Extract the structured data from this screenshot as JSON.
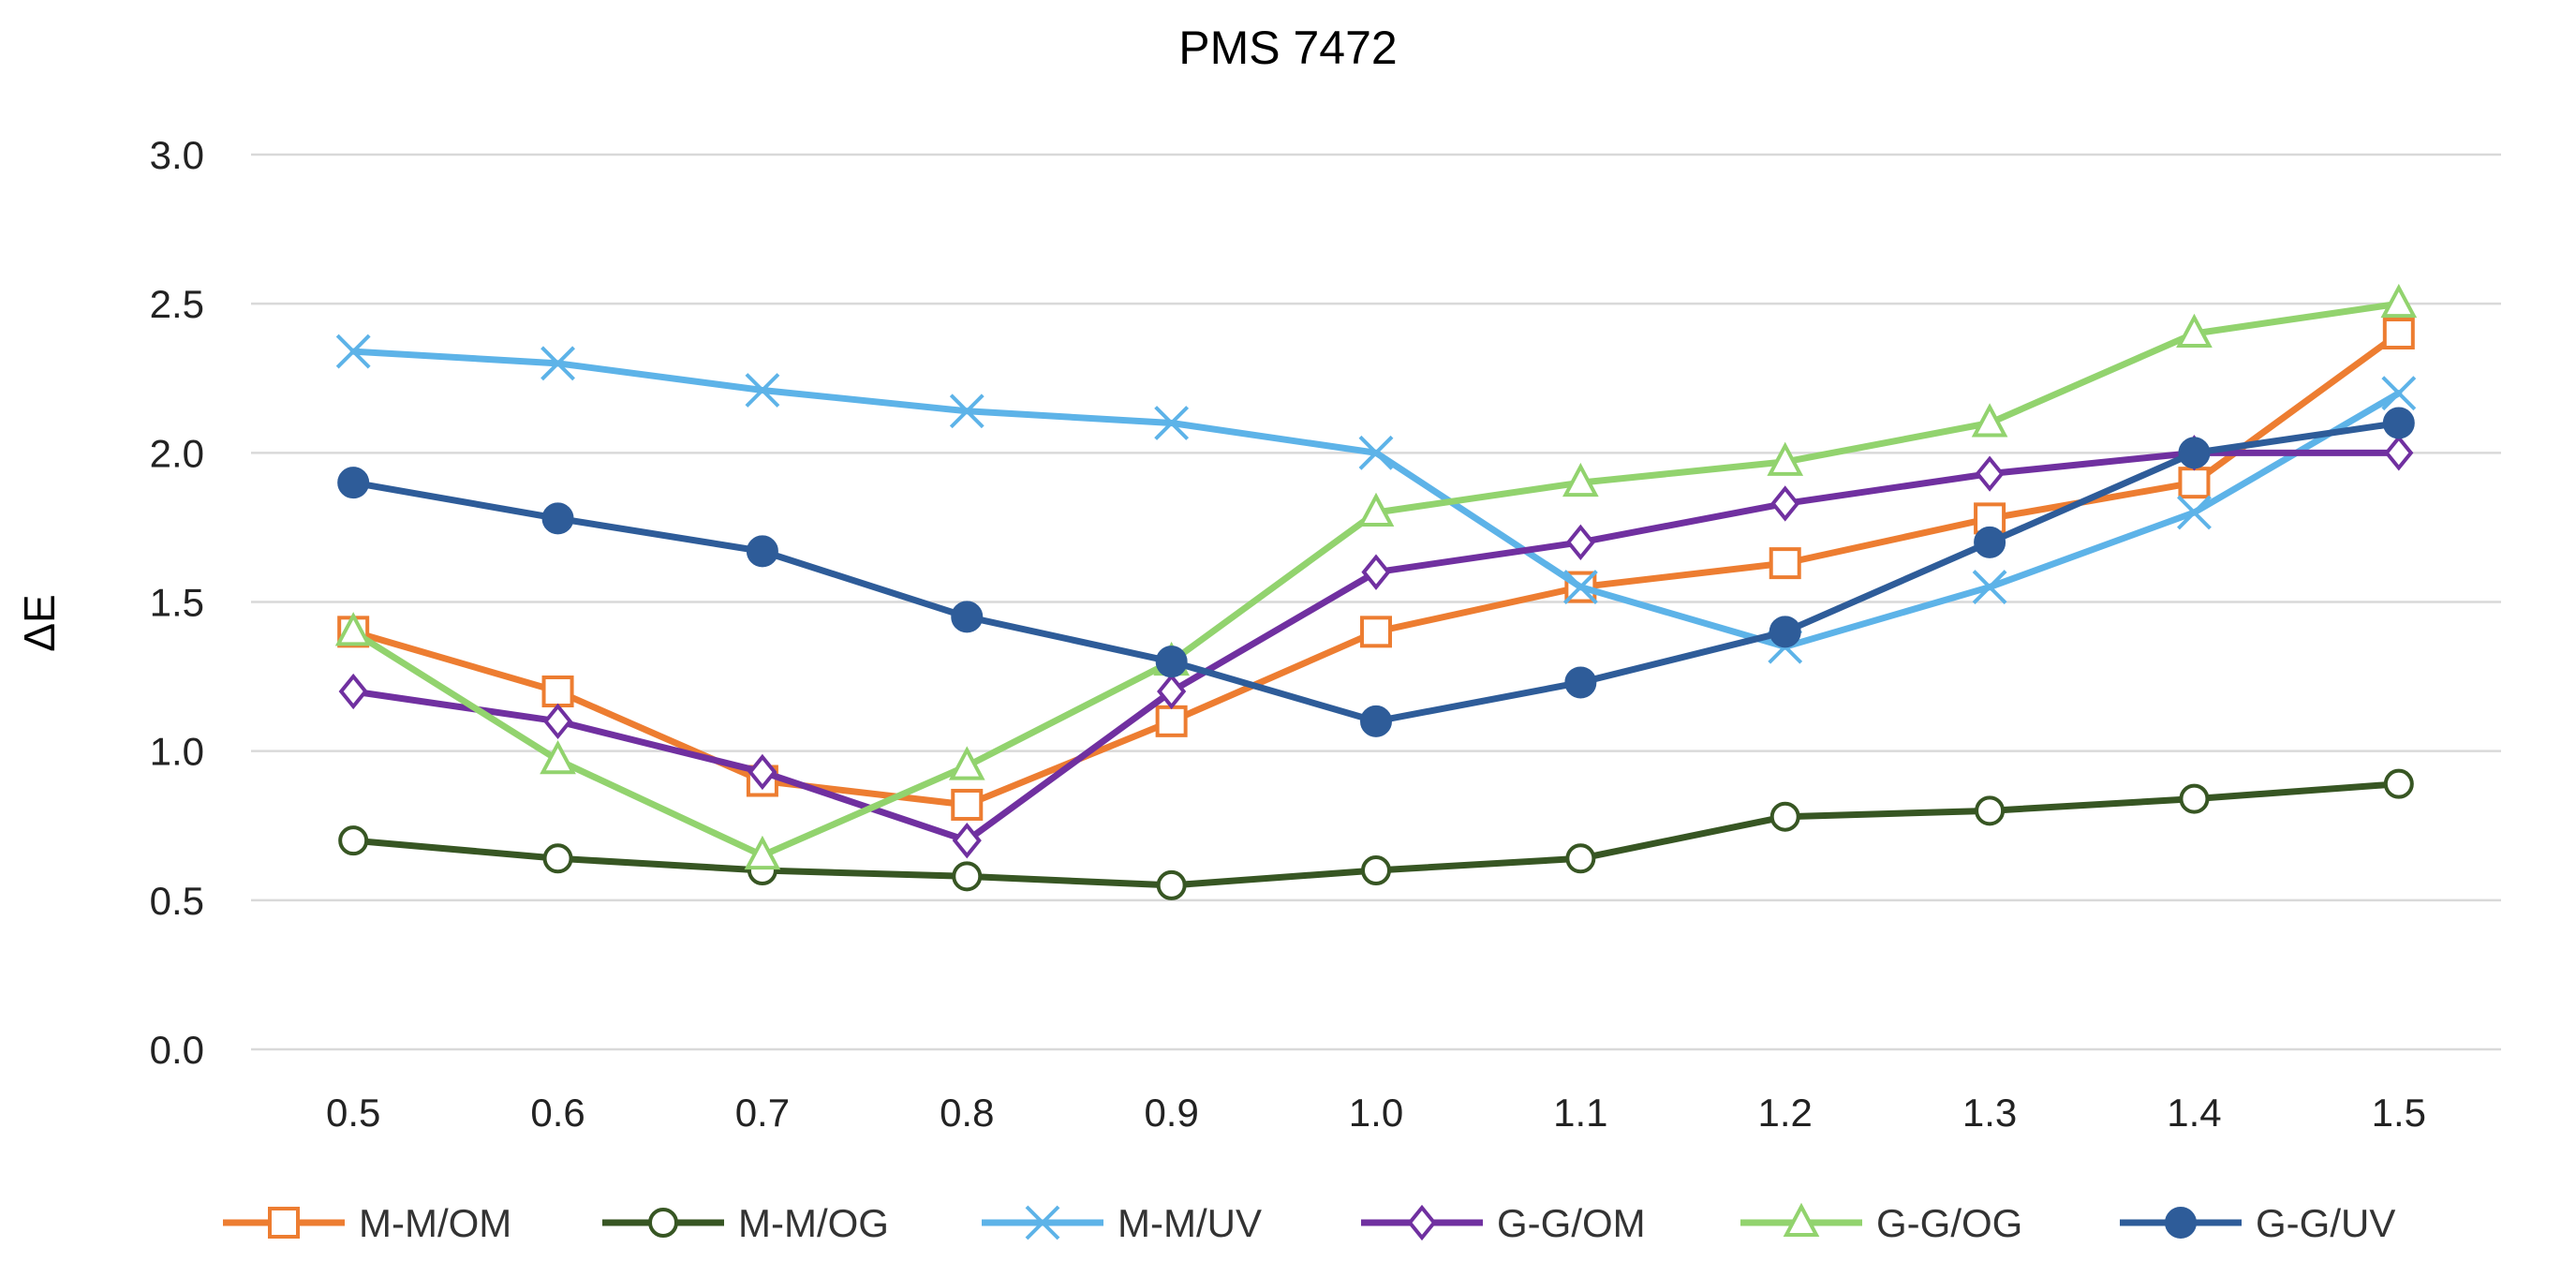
{
  "chart_data": {
    "type": "line",
    "title": "PMS 7472",
    "xlabel": "",
    "ylabel": "ΔE",
    "ylim": [
      0,
      3
    ],
    "yticks": [
      "0.0",
      "0.5",
      "1.0",
      "1.5",
      "2.0",
      "2.5",
      "3.0"
    ],
    "categories": [
      "0.5",
      "0.6",
      "0.7",
      "0.8",
      "0.9",
      "1.0",
      "1.1",
      "1.2",
      "1.3",
      "1.4",
      "1.5"
    ],
    "grid": true,
    "legend_position": "bottom",
    "series": [
      {
        "name": "M-M/OM",
        "color": "#ed7d31",
        "marker": "square",
        "values": [
          1.4,
          1.2,
          0.9,
          0.82,
          1.1,
          1.4,
          1.55,
          1.63,
          1.78,
          1.9,
          2.4
        ]
      },
      {
        "name": "M-M/OG",
        "color": "#375623",
        "marker": "circle-open",
        "values": [
          0.7,
          0.64,
          0.6,
          0.58,
          0.55,
          0.6,
          0.64,
          0.78,
          0.8,
          0.84,
          0.89
        ]
      },
      {
        "name": "M-M/UV",
        "color": "#5db3e8",
        "marker": "x",
        "values": [
          2.34,
          2.3,
          2.21,
          2.14,
          2.1,
          2.0,
          1.55,
          1.35,
          1.55,
          1.8,
          2.2
        ]
      },
      {
        "name": "G-G/OM",
        "color": "#7030a0",
        "marker": "diamond",
        "values": [
          1.2,
          1.1,
          0.93,
          0.7,
          1.2,
          1.6,
          1.7,
          1.83,
          1.93,
          2.0,
          2.0
        ]
      },
      {
        "name": "G-G/OG",
        "color": "#92d36e",
        "marker": "triangle",
        "values": [
          1.4,
          0.97,
          0.65,
          0.95,
          1.3,
          1.8,
          1.9,
          1.97,
          2.1,
          2.4,
          2.5
        ]
      },
      {
        "name": "G-G/UV",
        "color": "#2e5c99",
        "marker": "circle-filled",
        "values": [
          1.9,
          1.78,
          1.67,
          1.45,
          1.3,
          1.1,
          1.23,
          1.4,
          1.7,
          2.0,
          2.1
        ]
      }
    ]
  }
}
